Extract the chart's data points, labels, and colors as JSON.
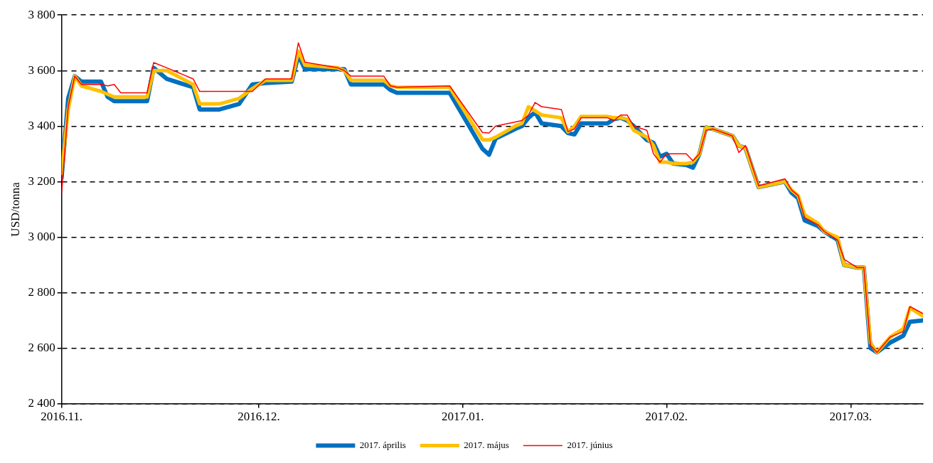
{
  "chart_data": {
    "type": "line",
    "ylabel": "USD/tonna",
    "x": [
      "2016-11-01",
      "2016-11-02",
      "2016-11-03",
      "2016-11-04",
      "2016-11-07",
      "2016-11-08",
      "2016-11-09",
      "2016-11-10",
      "2016-11-14",
      "2016-11-15",
      "2016-11-17",
      "2016-11-21",
      "2016-11-22",
      "2016-11-25",
      "2016-11-28",
      "2016-11-30",
      "2016-12-02",
      "2016-12-06",
      "2016-12-07",
      "2016-12-08",
      "2016-12-13",
      "2016-12-14",
      "2016-12-15",
      "2016-12-20",
      "2016-12-21",
      "2016-12-22",
      "2016-12-30",
      "2017-01-04",
      "2017-01-05",
      "2017-01-06",
      "2017-01-09",
      "2017-01-10",
      "2017-01-11",
      "2017-01-12",
      "2017-01-13",
      "2017-01-16",
      "2017-01-17",
      "2017-01-18",
      "2017-01-19",
      "2017-01-23",
      "2017-01-24",
      "2017-01-25",
      "2017-01-26",
      "2017-01-27",
      "2017-01-29",
      "2017-01-30",
      "2017-01-31",
      "2017-02-01",
      "2017-02-02",
      "2017-02-04",
      "2017-02-05",
      "2017-02-06",
      "2017-02-07",
      "2017-02-08",
      "2017-02-11",
      "2017-02-12",
      "2017-02-13",
      "2017-02-15",
      "2017-02-19",
      "2017-02-20",
      "2017-02-21",
      "2017-02-22",
      "2017-02-24",
      "2017-02-25",
      "2017-02-27",
      "2017-02-28",
      "2017-03-02",
      "2017-03-03",
      "2017-03-04",
      "2017-03-05",
      "2017-03-07",
      "2017-03-09",
      "2017-03-10",
      "2017-03-12"
    ],
    "series": [
      {
        "name": "2017. április",
        "color": "#0070c0",
        "values": [
          3215,
          3500,
          3580,
          3560,
          3560,
          3505,
          3490,
          3490,
          3490,
          3610,
          3570,
          3540,
          3460,
          3460,
          3480,
          3550,
          3555,
          3560,
          3655,
          3605,
          3605,
          3605,
          3550,
          3550,
          3530,
          3520,
          3520,
          3318,
          3297,
          3355,
          3390,
          3400,
          3430,
          3450,
          3410,
          3400,
          3375,
          3370,
          3410,
          3410,
          3425,
          3430,
          3420,
          3400,
          3350,
          3340,
          3290,
          3300,
          3265,
          3260,
          3250,
          3300,
          3395,
          3390,
          3365,
          3330,
          3320,
          3180,
          3200,
          3160,
          3140,
          3060,
          3040,
          3020,
          2990,
          2900,
          2890,
          2890,
          2600,
          2585,
          2620,
          2645,
          2695,
          2700
        ]
      },
      {
        "name": "2017. május",
        "color": "#ffc000",
        "values": [
          3230,
          3460,
          3580,
          3545,
          3525,
          3515,
          3505,
          3505,
          3505,
          3600,
          3600,
          3550,
          3480,
          3480,
          3500,
          3535,
          3565,
          3565,
          3670,
          3620,
          3610,
          3600,
          3565,
          3565,
          3545,
          3540,
          3540,
          3351,
          3350,
          3360,
          3400,
          3410,
          3470,
          3455,
          3440,
          3430,
          3380,
          3400,
          3435,
          3435,
          3430,
          3430,
          3425,
          3385,
          3360,
          3330,
          3270,
          3270,
          3265,
          3265,
          3270,
          3300,
          3395,
          3390,
          3365,
          3330,
          3320,
          3180,
          3200,
          3170,
          3150,
          3080,
          3050,
          3020,
          3000,
          2900,
          2890,
          2890,
          2620,
          2585,
          2640,
          2670,
          2745,
          2715
        ]
      },
      {
        "name": "2017. június",
        "color": "#ff0000",
        "values": [
          3160,
          3470,
          3580,
          3550,
          3550,
          3545,
          3550,
          3520,
          3520,
          3629,
          3610,
          3570,
          3525,
          3525,
          3525,
          3525,
          3570,
          3570,
          3700,
          3630,
          3610,
          3600,
          3580,
          3580,
          3545,
          3540,
          3545,
          3377,
          3375,
          3400,
          3415,
          3420,
          3440,
          3485,
          3470,
          3460,
          3380,
          3390,
          3430,
          3430,
          3420,
          3440,
          3440,
          3400,
          3385,
          3300,
          3270,
          3300,
          3300,
          3300,
          3275,
          3300,
          3385,
          3390,
          3365,
          3305,
          3330,
          3185,
          3210,
          3170,
          3150,
          3070,
          3045,
          3020,
          2990,
          2920,
          2890,
          2890,
          2610,
          2585,
          2640,
          2660,
          2750,
          2725
        ]
      }
    ],
    "xlim": [
      "2016-11-01",
      "2017-03-12"
    ],
    "xticks": [
      {
        "value": "2016-11-01",
        "label": "2016.11."
      },
      {
        "value": "2016-12-01",
        "label": "2016.12."
      },
      {
        "value": "2017-01-01",
        "label": "2017.01."
      },
      {
        "value": "2017-02-01",
        "label": "2017.02."
      },
      {
        "value": "2017-03-01",
        "label": "2017.03."
      }
    ],
    "ylim": [
      2400,
      3800
    ],
    "yticks": [
      {
        "value": 2400,
        "label": "2 400"
      },
      {
        "value": 2600,
        "label": "2 600"
      },
      {
        "value": 2800,
        "label": "2 800"
      },
      {
        "value": 3000,
        "label": "3 000"
      },
      {
        "value": 3200,
        "label": "3 200"
      },
      {
        "value": 3400,
        "label": "3 400"
      },
      {
        "value": 3600,
        "label": "3 600"
      },
      {
        "value": 3800,
        "label": "3 800"
      }
    ],
    "grid": "y",
    "legend": "bottom",
    "marker": "none",
    "line_style": "solid"
  }
}
